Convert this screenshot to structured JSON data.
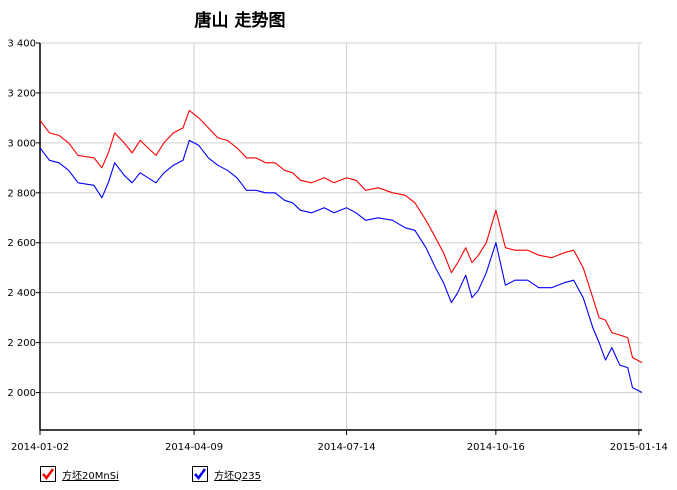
{
  "chart_data": {
    "type": "line",
    "title": "唐山 走势图",
    "xlabel": "",
    "ylabel": "",
    "ylim": [
      1850,
      3400
    ],
    "yticks": [
      2000,
      2200,
      2400,
      2600,
      2800,
      3000,
      3200,
      3400
    ],
    "ytick_labels": [
      "2 000",
      "2 200",
      "2 400",
      "2 600",
      "2 800",
      "3 000",
      "3 200",
      "3 400"
    ],
    "xlim": [
      "2014-01-02",
      "2015-01-16"
    ],
    "xticks": [
      "2014-01-02",
      "2014-04-09",
      "2014-07-14",
      "2014-10-16",
      "2015-01-14"
    ],
    "grid": true,
    "legend_position": "bottom-left",
    "series": [
      {
        "name": "方坯20MnSi",
        "color": "#ff0000",
        "points": [
          [
            "2014-01-02",
            3090
          ],
          [
            "2014-01-08",
            3040
          ],
          [
            "2014-01-14",
            3030
          ],
          [
            "2014-01-20",
            3000
          ],
          [
            "2014-01-26",
            2950
          ],
          [
            "2014-02-05",
            2940
          ],
          [
            "2014-02-10",
            2900
          ],
          [
            "2014-02-14",
            2960
          ],
          [
            "2014-02-18",
            3040
          ],
          [
            "2014-02-24",
            3000
          ],
          [
            "2014-03-01",
            2960
          ],
          [
            "2014-03-06",
            3010
          ],
          [
            "2014-03-11",
            2980
          ],
          [
            "2014-03-16",
            2950
          ],
          [
            "2014-03-21",
            3000
          ],
          [
            "2014-03-27",
            3040
          ],
          [
            "2014-04-02",
            3060
          ],
          [
            "2014-04-06",
            3130
          ],
          [
            "2014-04-12",
            3100
          ],
          [
            "2014-04-18",
            3060
          ],
          [
            "2014-04-24",
            3020
          ],
          [
            "2014-04-30",
            3010
          ],
          [
            "2014-05-06",
            2980
          ],
          [
            "2014-05-12",
            2940
          ],
          [
            "2014-05-18",
            2940
          ],
          [
            "2014-05-24",
            2920
          ],
          [
            "2014-05-30",
            2920
          ],
          [
            "2014-06-05",
            2890
          ],
          [
            "2014-06-10",
            2880
          ],
          [
            "2014-06-15",
            2850
          ],
          [
            "2014-06-22",
            2840
          ],
          [
            "2014-06-30",
            2860
          ],
          [
            "2014-07-06",
            2840
          ],
          [
            "2014-07-14",
            2860
          ],
          [
            "2014-07-20",
            2850
          ],
          [
            "2014-07-26",
            2810
          ],
          [
            "2014-08-03",
            2820
          ],
          [
            "2014-08-12",
            2800
          ],
          [
            "2014-08-20",
            2790
          ],
          [
            "2014-08-26",
            2760
          ],
          [
            "2014-09-02",
            2690
          ],
          [
            "2014-09-08",
            2620
          ],
          [
            "2014-09-13",
            2560
          ],
          [
            "2014-09-18",
            2480
          ],
          [
            "2014-09-22",
            2520
          ],
          [
            "2014-09-27",
            2580
          ],
          [
            "2014-10-01",
            2520
          ],
          [
            "2014-10-05",
            2550
          ],
          [
            "2014-10-10",
            2600
          ],
          [
            "2014-10-16",
            2730
          ],
          [
            "2014-10-22",
            2580
          ],
          [
            "2014-10-28",
            2570
          ],
          [
            "2014-11-05",
            2570
          ],
          [
            "2014-11-12",
            2550
          ],
          [
            "2014-11-20",
            2540
          ],
          [
            "2014-11-28",
            2560
          ],
          [
            "2014-12-04",
            2570
          ],
          [
            "2014-12-10",
            2500
          ],
          [
            "2014-12-16",
            2380
          ],
          [
            "2014-12-20",
            2300
          ],
          [
            "2014-12-24",
            2290
          ],
          [
            "2014-12-28",
            2240
          ],
          [
            "2015-01-02",
            2230
          ],
          [
            "2015-01-07",
            2220
          ],
          [
            "2015-01-10",
            2140
          ],
          [
            "2015-01-16",
            2120
          ]
        ]
      },
      {
        "name": "方坯Q235",
        "color": "#0000ff",
        "points": [
          [
            "2014-01-02",
            2980
          ],
          [
            "2014-01-08",
            2930
          ],
          [
            "2014-01-14",
            2920
          ],
          [
            "2014-01-20",
            2890
          ],
          [
            "2014-01-26",
            2840
          ],
          [
            "2014-02-05",
            2830
          ],
          [
            "2014-02-10",
            2780
          ],
          [
            "2014-02-14",
            2840
          ],
          [
            "2014-02-18",
            2920
          ],
          [
            "2014-02-24",
            2870
          ],
          [
            "2014-03-01",
            2840
          ],
          [
            "2014-03-06",
            2880
          ],
          [
            "2014-03-11",
            2860
          ],
          [
            "2014-03-16",
            2840
          ],
          [
            "2014-03-21",
            2880
          ],
          [
            "2014-03-27",
            2910
          ],
          [
            "2014-04-02",
            2930
          ],
          [
            "2014-04-06",
            3010
          ],
          [
            "2014-04-12",
            2990
          ],
          [
            "2014-04-18",
            2940
          ],
          [
            "2014-04-24",
            2910
          ],
          [
            "2014-04-30",
            2890
          ],
          [
            "2014-05-06",
            2860
          ],
          [
            "2014-05-12",
            2810
          ],
          [
            "2014-05-18",
            2810
          ],
          [
            "2014-05-24",
            2800
          ],
          [
            "2014-05-30",
            2800
          ],
          [
            "2014-06-05",
            2770
          ],
          [
            "2014-06-10",
            2760
          ],
          [
            "2014-06-15",
            2730
          ],
          [
            "2014-06-22",
            2720
          ],
          [
            "2014-06-30",
            2740
          ],
          [
            "2014-07-06",
            2720
          ],
          [
            "2014-07-14",
            2740
          ],
          [
            "2014-07-20",
            2720
          ],
          [
            "2014-07-26",
            2690
          ],
          [
            "2014-08-03",
            2700
          ],
          [
            "2014-08-12",
            2690
          ],
          [
            "2014-08-20",
            2660
          ],
          [
            "2014-08-26",
            2650
          ],
          [
            "2014-09-02",
            2580
          ],
          [
            "2014-09-08",
            2500
          ],
          [
            "2014-09-13",
            2440
          ],
          [
            "2014-09-18",
            2360
          ],
          [
            "2014-09-22",
            2400
          ],
          [
            "2014-09-27",
            2470
          ],
          [
            "2014-10-01",
            2380
          ],
          [
            "2014-10-05",
            2410
          ],
          [
            "2014-10-10",
            2480
          ],
          [
            "2014-10-16",
            2600
          ],
          [
            "2014-10-22",
            2430
          ],
          [
            "2014-10-28",
            2450
          ],
          [
            "2014-11-05",
            2450
          ],
          [
            "2014-11-12",
            2420
          ],
          [
            "2014-11-20",
            2420
          ],
          [
            "2014-11-28",
            2440
          ],
          [
            "2014-12-04",
            2450
          ],
          [
            "2014-12-10",
            2380
          ],
          [
            "2014-12-16",
            2260
          ],
          [
            "2014-12-20",
            2200
          ],
          [
            "2014-12-24",
            2130
          ],
          [
            "2014-12-28",
            2180
          ],
          [
            "2015-01-02",
            2110
          ],
          [
            "2015-01-07",
            2100
          ],
          [
            "2015-01-10",
            2020
          ],
          [
            "2015-01-16",
            2000
          ]
        ]
      }
    ]
  }
}
